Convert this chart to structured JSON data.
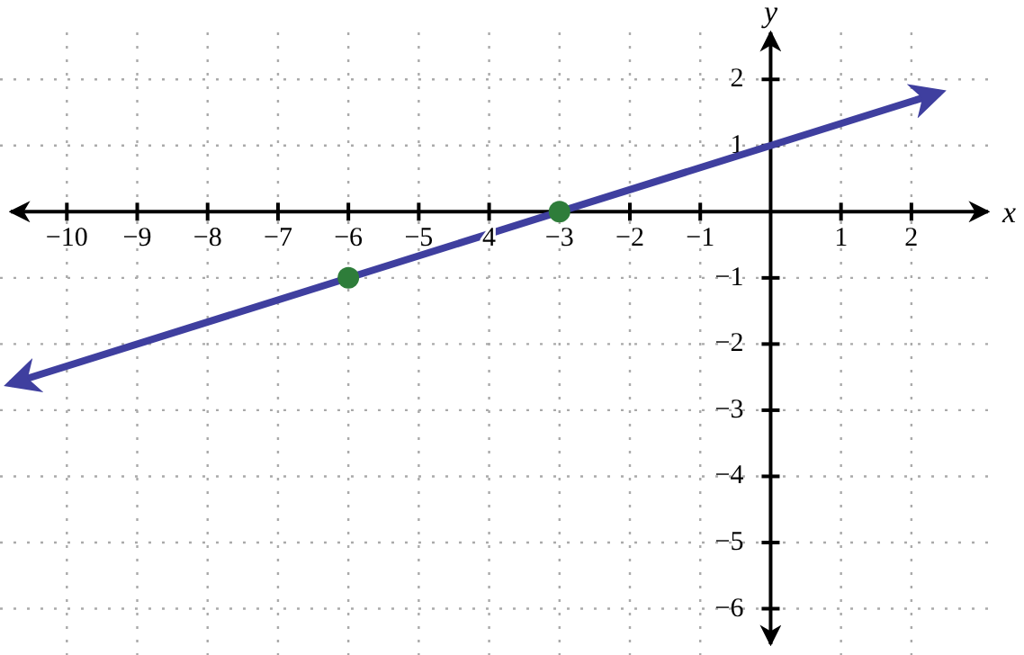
{
  "chart_data": {
    "type": "line",
    "xlabel": "x",
    "ylabel": "y",
    "xlim": [
      -10.95,
      3.6
    ],
    "ylim": [
      -6.7,
      3.2
    ],
    "xticks": [
      {
        "value": -10,
        "label": "−10"
      },
      {
        "value": -9,
        "label": "−9"
      },
      {
        "value": -8,
        "label": "−8"
      },
      {
        "value": -7,
        "label": "−7"
      },
      {
        "value": -6,
        "label": "−6"
      },
      {
        "value": -5,
        "label": "−5"
      },
      {
        "value": -4,
        "label": "4"
      },
      {
        "value": -3,
        "label": "−3"
      },
      {
        "value": -2,
        "label": "−2"
      },
      {
        "value": -1,
        "label": "−1"
      },
      1,
      2
    ],
    "yticks": [
      {
        "value": -6,
        "label": "−6"
      },
      {
        "value": -5,
        "label": "−5"
      },
      {
        "value": -4,
        "label": "−4"
      },
      {
        "value": -3,
        "label": "−3"
      },
      {
        "value": -2,
        "label": "−2"
      },
      {
        "value": -1,
        "label": "−1"
      },
      1,
      2
    ],
    "grid": true,
    "series": [
      {
        "color": "#3f3f9f",
        "x": [
          -10.8,
          2.4
        ],
        "values": [
          -2.6,
          1.8
        ],
        "marker": "none",
        "line_style": "solid"
      },
      {
        "type": "scatter",
        "color": "#2e7d3a",
        "x": [
          -6,
          -3
        ],
        "values": [
          -1,
          0
        ],
        "marker": "circle"
      }
    ]
  }
}
